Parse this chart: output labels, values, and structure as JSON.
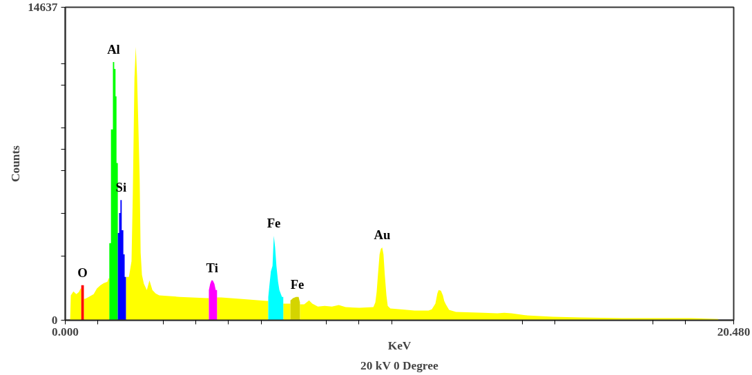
{
  "chart_data": {
    "type": "area",
    "xlabel": "KeV",
    "ylabel": "Counts",
    "annotations": [
      {
        "text": "O",
        "x": 0.53,
        "y": 1640
      },
      {
        "text": "Al",
        "x": 1.48,
        "y": 12070
      },
      {
        "text": "Si",
        "x": 1.71,
        "y": 5620
      },
      {
        "text": "Ti",
        "x": 4.5,
        "y": 1860
      },
      {
        "text": "Fe",
        "x": 6.39,
        "y": 3950
      },
      {
        "text": "Fe",
        "x": 7.11,
        "y": 1090
      },
      {
        "text": "Au",
        "x": 9.71,
        "y": 3400
      },
      "20 kV 0 Degree"
    ],
    "xlim": [
      0,
      20.48
    ],
    "ylim": [
      0,
      14637
    ],
    "xticks": [
      {
        "value": 0,
        "label": "0.000"
      },
      {
        "value": 1,
        "label": null
      },
      {
        "value": 3,
        "label": null
      },
      {
        "value": 4,
        "label": null
      },
      {
        "value": 5,
        "label": null
      },
      {
        "value": 6,
        "label": null
      },
      {
        "value": 8,
        "label": null
      },
      {
        "value": 9,
        "label": null
      },
      {
        "value": 10,
        "label": null
      },
      {
        "value": 14,
        "label": null
      },
      {
        "value": 15,
        "label": null
      },
      {
        "value": 18,
        "label": null
      },
      {
        "value": 19,
        "label": null
      },
      {
        "value": 20.48,
        "label": "20.480"
      }
    ],
    "yticks": [
      0,
      {
        "value": 3000,
        "label": null
      },
      {
        "value": 5000,
        "label": null
      },
      {
        "value": 7000,
        "label": null
      },
      {
        "value": 8000,
        "label": null
      },
      {
        "value": 9000,
        "label": null
      },
      {
        "value": 11000,
        "label": null
      },
      {
        "value": 12000,
        "label": null
      },
      14637
    ],
    "grid": false,
    "series": [
      {
        "color": "#ffff00",
        "x": [
          0.15,
          0.17,
          0.25,
          0.34,
          0.42,
          0.47,
          0.49,
          0.53,
          0.57,
          0.61,
          0.72,
          0.87,
          0.97,
          1.08,
          1.18,
          1.29,
          1.33,
          1.35,
          1.6,
          1.86,
          1.95,
          2.03,
          2.07,
          2.12,
          2.16,
          2.2,
          2.24,
          2.28,
          2.31,
          2.35,
          2.41,
          2.5,
          2.58,
          2.67,
          2.77,
          2.88,
          3.51,
          4.36,
          4.4,
          4.5,
          4.65,
          4.78,
          5.42,
          6.16,
          6.22,
          6.4,
          6.68,
          6.79,
          6.9,
          7.0,
          7.19,
          7.32,
          7.47,
          7.57,
          7.74,
          7.95,
          8.17,
          8.38,
          8.59,
          9.01,
          9.44,
          9.5,
          9.54,
          9.58,
          9.63,
          9.67,
          9.71,
          9.75,
          9.79,
          9.84,
          9.88,
          9.96,
          10.28,
          10.7,
          11.13,
          11.23,
          11.34,
          11.4,
          11.44,
          11.51,
          11.57,
          11.61,
          11.66,
          11.76,
          11.97,
          12.82,
          13.24,
          13.45,
          13.67,
          14.09,
          14.94,
          15.78,
          17.05,
          19.17,
          20.01
        ],
        "values": [
          0,
          1160,
          1350,
          1220,
          1320,
          1480,
          1480,
          null,
          1000,
          1000,
          1090,
          1220,
          1480,
          1640,
          1730,
          1800,
          1960,
          1960,
          null,
          2020,
          2020,
          2760,
          5910,
          11330,
          12780,
          11430,
          9080,
          6610,
          3150,
          2120,
          1700,
          1410,
          1860,
          1410,
          1250,
          1160,
          1090,
          1030,
          1030,
          null,
          1060,
          1060,
          990,
          900,
          900,
          null,
          770,
          770,
          770,
          null,
          740,
          740,
          930,
          770,
          640,
          670,
          640,
          710,
          610,
          580,
          610,
          830,
          1310,
          2120,
          3080,
          3340,
          3400,
          3080,
          2120,
          1160,
          670,
          550,
          510,
          450,
          450,
          510,
          770,
          1250,
          1410,
          1380,
          1160,
          900,
          740,
          480,
          390,
          350,
          320,
          350,
          320,
          230,
          160,
          130,
          100,
          100,
          60
        ]
      },
      {
        "color": "#ff0000",
        "x": [
          0.49,
          0.57
        ],
        "values": [
          1640,
          1640
        ]
      },
      {
        "color": "#00ff00",
        "x": [
          1.35,
          1.4,
          1.4,
          1.46,
          1.46,
          1.5,
          1.5,
          1.54,
          1.54,
          1.57,
          1.57,
          1.61
        ],
        "values": [
          3600,
          3600,
          8920,
          8920,
          12070,
          12070,
          11750,
          11750,
          10470,
          10470,
          7350,
          7350
        ]
      },
      {
        "color": "#0000ff",
        "x": [
          1.61,
          1.65,
          1.65,
          1.69,
          1.69,
          1.73,
          1.73,
          1.78,
          1.78,
          1.82,
          1.82,
          1.86
        ],
        "values": [
          4080,
          4080,
          5010,
          5010,
          5620,
          5620,
          4210,
          4210,
          3080,
          3080,
          2020,
          2020
        ]
      },
      {
        "color": "#ff00ff",
        "x": [
          4.4,
          4.44,
          4.48,
          4.52,
          4.57,
          4.61,
          4.65
        ],
        "values": [
          1410,
          1700,
          1860,
          1860,
          1700,
          1410,
          1410
        ]
      },
      {
        "color": "#00ffff",
        "x": [
          6.22,
          6.26,
          6.3,
          6.35,
          6.39,
          6.43,
          6.47,
          6.52,
          6.56,
          6.6,
          6.64,
          6.68
        ],
        "values": [
          1090,
          1700,
          2280,
          2540,
          3950,
          3400,
          2540,
          1800,
          1410,
          1250,
          1090,
          1090
        ]
      },
      {
        "color": "#d4d400",
        "x": [
          6.9,
          6.98,
          7.07,
          7.15,
          7.19
        ],
        "values": [
          930,
          1030,
          1090,
          1090,
          830
        ]
      }
    ]
  }
}
